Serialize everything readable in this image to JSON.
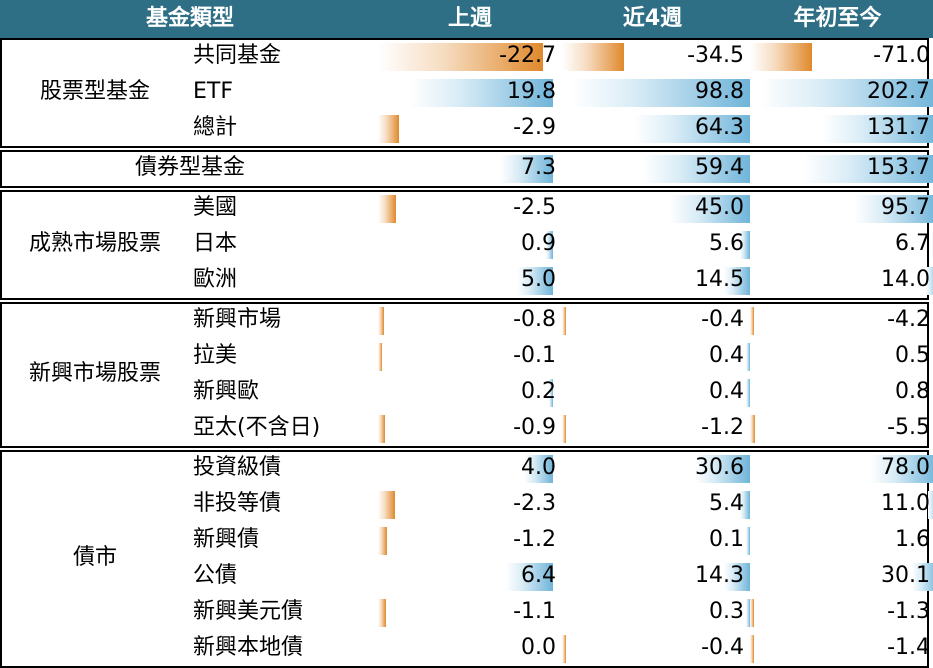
{
  "header": {
    "type_label": "基金類型",
    "columns": [
      "上週",
      "近4週",
      "年初至今"
    ]
  },
  "colors": {
    "header_bg": "#2e6f86",
    "positive_bar": "#6fb4d9",
    "negative_bar": "#e0892c"
  },
  "groups": [
    {
      "label": "股票型基金",
      "rows": [
        {
          "label": "共同基金",
          "values": [
            -22.7,
            -34.5,
            -71.0
          ],
          "display": [
            "-22.7",
            "-34.5",
            "-71.0"
          ]
        },
        {
          "label": "ETF",
          "values": [
            19.8,
            98.8,
            202.7
          ],
          "display": [
            "19.8",
            "98.8",
            "202.7"
          ]
        },
        {
          "label": "總計",
          "values": [
            -2.9,
            64.3,
            131.7
          ],
          "display": [
            "-2.9",
            "64.3",
            "131.7"
          ]
        }
      ]
    },
    {
      "label": "債券型基金",
      "rows": [
        {
          "label": "",
          "values": [
            7.3,
            59.4,
            153.7
          ],
          "display": [
            "7.3",
            "59.4",
            "153.7"
          ]
        }
      ]
    },
    {
      "label": "成熟市場股票",
      "rows": [
        {
          "label": "美國",
          "values": [
            -2.5,
            45.0,
            95.7
          ],
          "display": [
            "-2.5",
            "45.0",
            "95.7"
          ]
        },
        {
          "label": "日本",
          "values": [
            0.9,
            5.6,
            6.7
          ],
          "display": [
            "0.9",
            "5.6",
            "6.7"
          ]
        },
        {
          "label": "歐洲",
          "values": [
            5.0,
            14.5,
            14.0
          ],
          "display": [
            "5.0",
            "14.5",
            "14.0"
          ]
        }
      ]
    },
    {
      "label": "新興市場股票",
      "rows": [
        {
          "label": "新興市場",
          "values": [
            -0.8,
            -0.4,
            -4.2
          ],
          "display": [
            "-0.8",
            "-0.4",
            "-4.2"
          ]
        },
        {
          "label": "拉美",
          "values": [
            -0.1,
            0.4,
            0.5
          ],
          "display": [
            "-0.1",
            "0.4",
            "0.5"
          ]
        },
        {
          "label": "新興歐",
          "values": [
            0.2,
            0.4,
            0.8
          ],
          "display": [
            "0.2",
            "0.4",
            "0.8"
          ]
        },
        {
          "label": "亞太(不含日)",
          "values": [
            -0.9,
            -1.2,
            -5.5
          ],
          "display": [
            "-0.9",
            "-1.2",
            "-5.5"
          ]
        }
      ]
    },
    {
      "label": "債市",
      "rows": [
        {
          "label": "投資級債",
          "values": [
            4.0,
            30.6,
            78.0
          ],
          "display": [
            "4.0",
            "30.6",
            "78.0"
          ]
        },
        {
          "label": "非投等債",
          "values": [
            -2.3,
            5.4,
            11.0
          ],
          "display": [
            "-2.3",
            "5.4",
            "11.0"
          ]
        },
        {
          "label": "新興債",
          "values": [
            -1.2,
            0.1,
            1.6
          ],
          "display": [
            "-1.2",
            "0.1",
            "1.6"
          ]
        },
        {
          "label": "公債",
          "values": [
            6.4,
            14.3,
            30.1
          ],
          "display": [
            "6.4",
            "14.3",
            "30.1"
          ]
        },
        {
          "label": "新興美元債",
          "values": [
            -1.1,
            0.3,
            -1.3
          ],
          "display": [
            "-1.1",
            "0.3",
            "-1.3"
          ]
        },
        {
          "label": "新興本地債",
          "values": [
            0.0,
            -0.4,
            -1.4
          ],
          "display": [
            "0.0",
            "-0.4",
            "-1.4"
          ]
        }
      ]
    }
  ]
}
